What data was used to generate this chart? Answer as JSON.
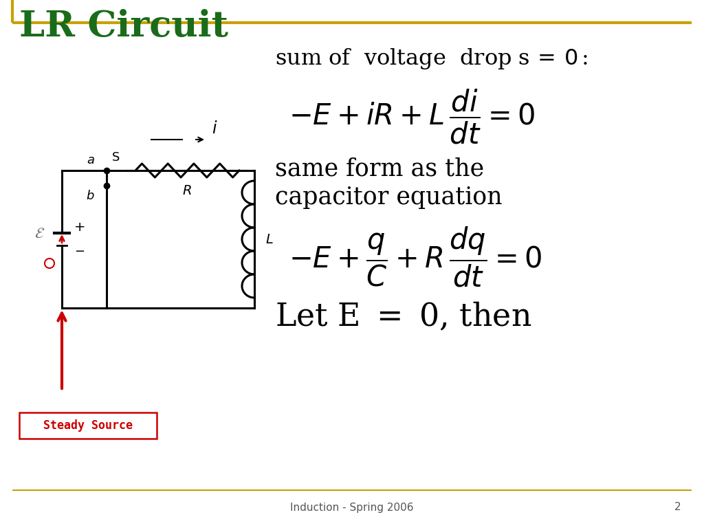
{
  "title": "LR Circuit",
  "title_color": "#1a6b1a",
  "title_fontsize": 38,
  "border_color": "#c8a000",
  "background_color": "#ffffff",
  "text_color": "#000000",
  "footer_text": "Induction - Spring 2006",
  "footer_page": "2",
  "steady_source_text": "Steady Source",
  "steady_source_color": "#cc0000",
  "circuit_color": "#000000",
  "red_color": "#cc0000"
}
